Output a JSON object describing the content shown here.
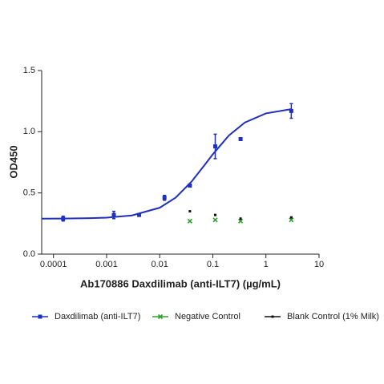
{
  "chart_data": {
    "type": "scatter",
    "x_label": "Ab170886 Daxdilimab (anti-ILT7) (µg/mL)",
    "y_label": "OD450",
    "xscale": "log",
    "xlim": [
      6e-05,
      10
    ],
    "xticks": [
      0.0001,
      0.001,
      0.01,
      0.1,
      1,
      10
    ],
    "ylim": [
      0,
      1.5
    ],
    "yticks": [
      {
        "value": 0,
        "label": "0.0"
      },
      {
        "value": 0.5,
        "label": "0.5"
      },
      {
        "value": 1,
        "label": "1.0"
      },
      {
        "value": 1.5,
        "label": "1.5"
      }
    ],
    "series": [
      {
        "name": "Daxdilimab (anti-ILT7)",
        "color": "#1f2fbf",
        "marker": "square",
        "x": [
          0.000152,
          0.00137,
          0.0041,
          0.0123,
          0.037,
          0.111,
          0.333,
          3
        ],
        "values": [
          0.29,
          0.32,
          0.32,
          0.46,
          0.56,
          0.88,
          0.94,
          1.17
        ],
        "errors": [
          0.02,
          0.03,
          0.01,
          0.02,
          0.01,
          0.1,
          0.01,
          0.06
        ],
        "curve": {
          "x": [
            6e-05,
            0.00015,
            0.0005,
            0.001,
            0.003,
            0.01,
            0.02,
            0.04,
            0.07,
            0.1,
            0.2,
            0.4,
            1,
            3
          ],
          "values": [
            0.29,
            0.291,
            0.294,
            0.298,
            0.316,
            0.379,
            0.462,
            0.594,
            0.728,
            0.816,
            0.969,
            1.075,
            1.15,
            1.185
          ]
        }
      },
      {
        "name": "Negative Control",
        "color": "#2ca02c",
        "marker": "x",
        "x": [
          0.037,
          0.111,
          0.333,
          3
        ],
        "values": [
          0.27,
          0.28,
          0.27,
          0.28
        ]
      },
      {
        "name": "Blank Control (1% Milk)",
        "color": "#111111",
        "marker": "dash",
        "x": [
          0.037,
          0.111,
          0.333,
          3
        ],
        "values": [
          0.35,
          0.32,
          0.29,
          0.3
        ]
      }
    ]
  }
}
